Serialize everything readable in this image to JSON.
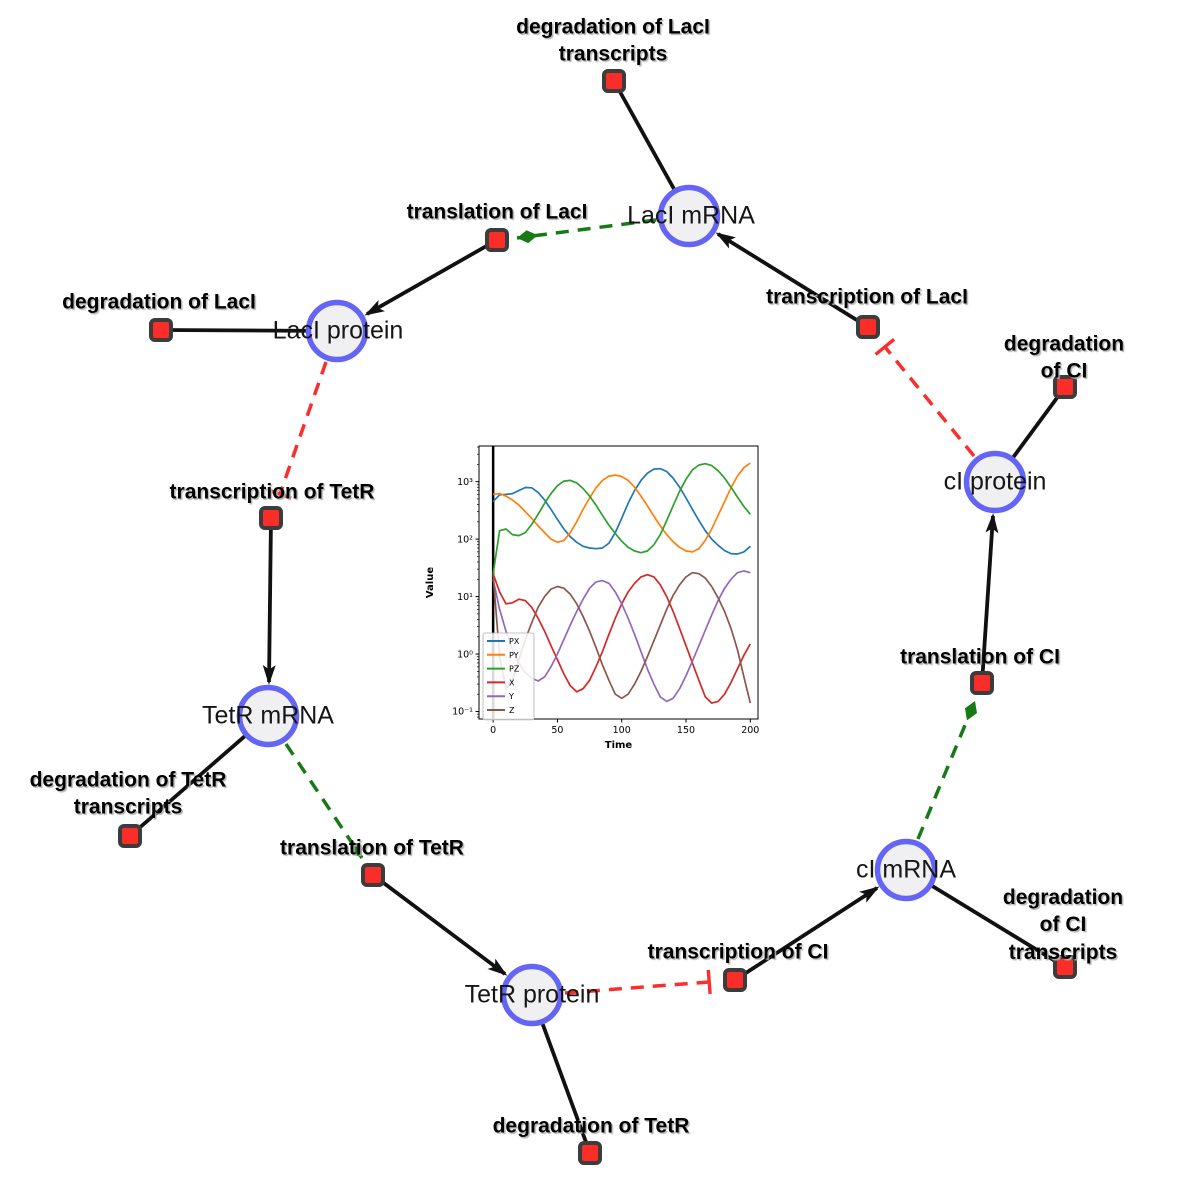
{
  "colors": {
    "species_fill": "#f0f0f2",
    "species_border": "#6464f5",
    "reaction_fill": "#fa2d28",
    "reaction_border": "#3c3c3c",
    "edge_black": "#111111",
    "modifier_green": "#177a17",
    "inhibition_red": "#fb2e2e"
  },
  "nodes": {
    "species": [
      {
        "label": "LacI mRNA"
      },
      {
        "label": "LacI protein"
      },
      {
        "label": "TetR mRNA"
      },
      {
        "label": "TetR protein"
      },
      {
        "label": "cI mRNA"
      },
      {
        "label": "cI protein"
      }
    ],
    "reactions": [
      {
        "label": "degradation of LacI\ntranscripts"
      },
      {
        "label": "translation of LacI"
      },
      {
        "label": "transcription of LacI"
      },
      {
        "label": "degradation of LacI"
      },
      {
        "label": "degradation of CI"
      },
      {
        "label": "transcription of TetR"
      },
      {
        "label": "translation of CI"
      },
      {
        "label": "degradation of TetR\ntranscripts"
      },
      {
        "label": "translation of TetR"
      },
      {
        "label": "transcription of CI"
      },
      {
        "label": "degradation of CI\ntranscripts"
      },
      {
        "label": "degradation of TetR"
      }
    ]
  },
  "chart_data": {
    "type": "line",
    "title": "",
    "xlabel": "Time",
    "ylabel": "Value",
    "yscale": "log",
    "grid": false,
    "legend_position": "lower-left",
    "x_ticks": [
      0,
      50,
      100,
      150,
      200
    ],
    "y_ticks": [
      {
        "label": "10³",
        "exp": 3
      },
      {
        "label": "10²",
        "exp": 2
      },
      {
        "label": "10¹",
        "exp": 1
      },
      {
        "label": "10⁰",
        "exp": 0
      },
      {
        "label": "10⁻¹",
        "exp": -1
      }
    ],
    "x_range": [
      -11,
      206
    ],
    "y_log_range": [
      -1.13,
      3.62
    ],
    "x": [
      0,
      5,
      10,
      15,
      20,
      25,
      30,
      35,
      40,
      45,
      50,
      55,
      60,
      65,
      70,
      75,
      80,
      85,
      90,
      95,
      100,
      105,
      110,
      115,
      120,
      125,
      130,
      135,
      140,
      145,
      150,
      155,
      160,
      165,
      170,
      175,
      180,
      185,
      190,
      195,
      200
    ],
    "series": [
      {
        "name": "PX",
        "color": "#1f77b4",
        "values": [
          450,
          590,
          600,
          620,
          700,
          790,
          780,
          650,
          480,
          330,
          220,
          150,
          110,
          88,
          75,
          70,
          68,
          70,
          85,
          130,
          230,
          420,
          700,
          1050,
          1400,
          1650,
          1680,
          1500,
          1150,
          800,
          520,
          330,
          210,
          140,
          100,
          78,
          63,
          56,
          55,
          60,
          75
        ]
      },
      {
        "name": "PY",
        "color": "#ff7f0e",
        "values": [
          600,
          620,
          560,
          480,
          390,
          300,
          230,
          170,
          130,
          100,
          88,
          95,
          130,
          200,
          330,
          520,
          780,
          1050,
          1250,
          1300,
          1230,
          1050,
          800,
          560,
          380,
          250,
          170,
          120,
          90,
          72,
          62,
          60,
          68,
          95,
          150,
          260,
          450,
          780,
          1250,
          1750,
          2100
        ]
      },
      {
        "name": "PZ",
        "color": "#2ca02c",
        "values": [
          25,
          140,
          150,
          120,
          115,
          130,
          180,
          270,
          420,
          620,
          850,
          1020,
          1050,
          950,
          760,
          560,
          390,
          260,
          175,
          125,
          92,
          72,
          62,
          58,
          62,
          80,
          120,
          210,
          380,
          680,
          1100,
          1600,
          1950,
          2050,
          1900,
          1550,
          1150,
          800,
          540,
          370,
          270
        ]
      },
      {
        "name": "X",
        "color": "#d62728",
        "values": [
          25,
          12,
          7.5,
          7.8,
          9,
          8.5,
          6.5,
          4.2,
          2.5,
          1.4,
          0.8,
          0.45,
          0.28,
          0.22,
          0.25,
          0.35,
          0.6,
          1.1,
          2.2,
          4.2,
          7.5,
          12,
          17,
          22,
          24,
          22,
          16,
          10,
          5.5,
          2.8,
          1.4,
          0.7,
          0.35,
          0.18,
          0.14,
          0.15,
          0.2,
          0.32,
          0.55,
          0.95,
          1.5
        ]
      },
      {
        "name": "Y",
        "color": "#9467bd",
        "values": [
          20,
          6,
          2.5,
          1.2,
          0.7,
          0.48,
          0.38,
          0.34,
          0.4,
          0.6,
          1.0,
          1.8,
          3.2,
          5.5,
          9,
          14,
          18,
          19,
          17,
          12,
          7.5,
          4.2,
          2.2,
          1.1,
          0.55,
          0.3,
          0.18,
          0.15,
          0.17,
          0.25,
          0.42,
          0.75,
          1.4,
          2.6,
          4.8,
          8.5,
          14,
          20,
          26,
          28,
          26
        ]
      },
      {
        "name": "Z",
        "color": "#8c564b",
        "values": [
          25,
          0.9,
          0.25,
          0.35,
          0.8,
          1.8,
          3.5,
          6.5,
          10,
          13.5,
          15,
          14,
          11,
          7.5,
          4.5,
          2.5,
          1.3,
          0.65,
          0.35,
          0.2,
          0.17,
          0.2,
          0.3,
          0.5,
          0.9,
          1.7,
          3.2,
          6,
          10.5,
          16,
          22,
          26,
          25,
          21,
          15,
          9.5,
          5.5,
          2.8,
          1.2,
          0.4,
          0.14
        ]
      }
    ],
    "annotations": [
      {
        "type": "vline",
        "x": 0,
        "color": "#000000",
        "width": 2.5
      }
    ]
  }
}
